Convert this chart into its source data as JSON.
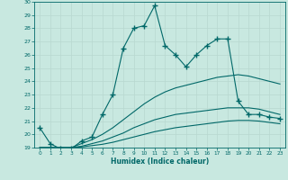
{
  "xlabel": "Humidex (Indice chaleur)",
  "xlim": [
    -0.5,
    23.5
  ],
  "ylim": [
    19,
    30
  ],
  "xticks": [
    0,
    1,
    2,
    3,
    4,
    5,
    6,
    7,
    8,
    9,
    10,
    11,
    12,
    13,
    14,
    15,
    16,
    17,
    18,
    19,
    20,
    21,
    22,
    23
  ],
  "yticks": [
    19,
    20,
    21,
    22,
    23,
    24,
    25,
    26,
    27,
    28,
    29,
    30
  ],
  "bg_color": "#c8e8e0",
  "line_color": "#006868",
  "grid_color": "#b8d8d0",
  "line1_x": [
    0,
    1,
    2,
    3,
    4,
    5,
    6,
    7,
    8,
    9,
    10,
    11,
    12,
    13,
    14,
    15,
    16,
    17,
    18,
    19,
    20,
    21,
    22,
    23
  ],
  "line1_y": [
    20.5,
    19.3,
    18.9,
    18.9,
    19.5,
    19.8,
    21.5,
    23.0,
    26.5,
    28.0,
    28.2,
    29.7,
    26.7,
    26.0,
    25.1,
    26.0,
    26.7,
    27.2,
    27.2,
    22.5,
    21.5,
    21.5,
    21.3,
    21.2
  ],
  "line2_x": [
    0,
    1,
    2,
    3,
    4,
    5,
    6,
    7,
    8,
    9,
    10,
    11,
    12,
    13,
    14,
    15,
    16,
    17,
    18,
    19,
    20,
    21,
    22,
    23
  ],
  "line2_y": [
    19.0,
    19.0,
    19.0,
    19.0,
    19.3,
    19.6,
    20.0,
    20.5,
    21.1,
    21.7,
    22.3,
    22.8,
    23.2,
    23.5,
    23.7,
    23.9,
    24.1,
    24.3,
    24.4,
    24.5,
    24.4,
    24.2,
    24.0,
    23.8
  ],
  "line3_x": [
    0,
    1,
    2,
    3,
    4,
    5,
    6,
    7,
    8,
    9,
    10,
    11,
    12,
    13,
    14,
    15,
    16,
    17,
    18,
    19,
    20,
    21,
    22,
    23
  ],
  "line3_y": [
    19.0,
    19.0,
    19.0,
    19.0,
    19.1,
    19.3,
    19.5,
    19.8,
    20.1,
    20.5,
    20.8,
    21.1,
    21.3,
    21.5,
    21.6,
    21.7,
    21.8,
    21.9,
    22.0,
    22.0,
    22.0,
    21.9,
    21.7,
    21.5
  ],
  "line4_x": [
    0,
    1,
    2,
    3,
    4,
    5,
    6,
    7,
    8,
    9,
    10,
    11,
    12,
    13,
    14,
    15,
    16,
    17,
    18,
    19,
    20,
    21,
    22,
    23
  ],
  "line4_y": [
    19.0,
    19.0,
    19.0,
    19.0,
    19.05,
    19.15,
    19.25,
    19.4,
    19.6,
    19.8,
    20.0,
    20.2,
    20.35,
    20.5,
    20.6,
    20.7,
    20.8,
    20.9,
    21.0,
    21.05,
    21.05,
    21.0,
    20.9,
    20.8
  ]
}
